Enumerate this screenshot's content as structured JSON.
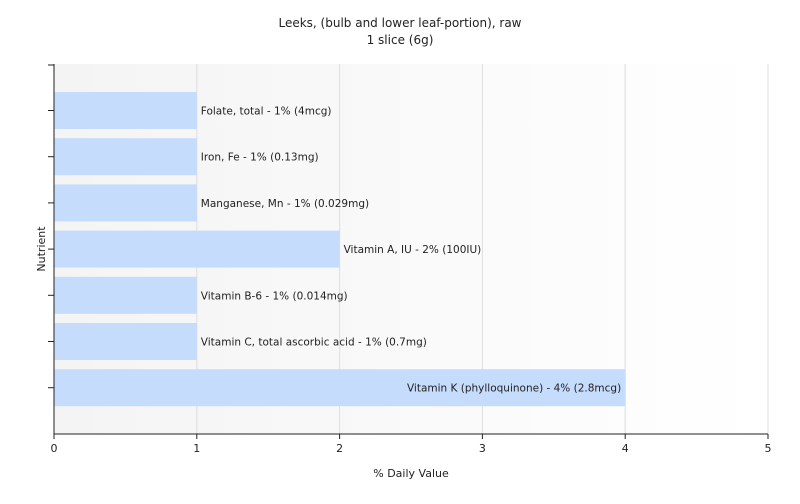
{
  "chart_data": {
    "type": "bar",
    "orientation": "horizontal",
    "title": "Leeks, (bulb and lower leaf-portion), raw",
    "subtitle": "1 slice (6g)",
    "xlabel": "% Daily Value",
    "ylabel": "Nutrient",
    "xlim": [
      0,
      5
    ],
    "xticks": [
      "0",
      "1",
      "2",
      "3",
      "4",
      "5"
    ],
    "grid": true,
    "bar_color": "#c5dcfd",
    "categories": [
      "Folate, total",
      "Iron, Fe",
      "Manganese, Mn",
      "Vitamin A, IU",
      "Vitamin B-6",
      "Vitamin C, total ascorbic acid",
      "Vitamin K (phylloquinone)"
    ],
    "values": [
      1,
      1,
      1,
      2,
      1,
      1,
      4
    ],
    "labels": [
      "Folate, total - 1% (4mcg)",
      "Iron, Fe - 1% (0.13mg)",
      "Manganese, Mn - 1% (0.029mg)",
      "Vitamin A, IU - 2% (100IU)",
      "Vitamin B-6 - 1% (0.014mg)",
      "Vitamin C, total ascorbic acid - 1% (0.7mg)",
      "Vitamin K (phylloquinone) - 4% (2.8mcg)"
    ]
  }
}
